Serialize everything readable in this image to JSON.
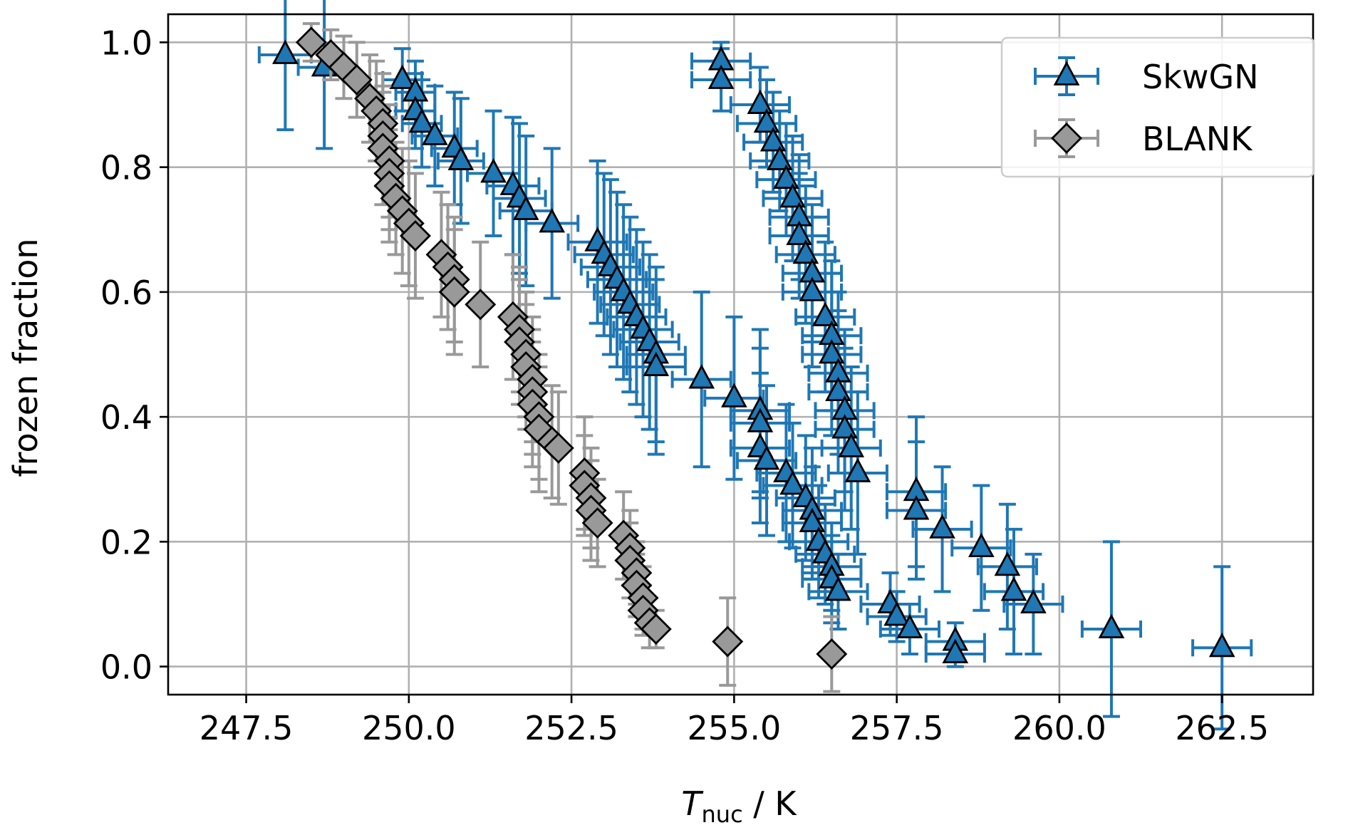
{
  "chart_data": {
    "type": "scatter",
    "xlabel": {
      "main": "T",
      "sub": "nuc",
      "rest": " / K"
    },
    "ylabel": "frozen fraction",
    "xlim": [
      246.3,
      263.9
    ],
    "ylim": [
      -0.045,
      1.045
    ],
    "xticks": [
      247.5,
      250.0,
      252.5,
      255.0,
      257.5,
      260.0,
      262.5
    ],
    "xtick_labels": [
      "247.5",
      "250.0",
      "252.5",
      "255.0",
      "257.5",
      "260.0",
      "262.5"
    ],
    "yticks": [
      0.0,
      0.2,
      0.4,
      0.6,
      0.8,
      1.0
    ],
    "ytick_labels": [
      "0.0",
      "0.2",
      "0.4",
      "0.6",
      "0.8",
      "1.0"
    ],
    "grid": true,
    "legend_position": "top-right",
    "series": [
      {
        "name": "SkwGN",
        "marker": "triangle",
        "color": "#1f77b4",
        "points": [
          [
            248.1,
            0.98,
            0.4,
            0.12
          ],
          [
            248.7,
            0.96,
            0.4,
            0.13
          ],
          [
            249.9,
            0.94,
            0.3,
            0.05
          ],
          [
            250.1,
            0.92,
            0.3,
            0.05
          ],
          [
            250.1,
            0.89,
            0.3,
            0.06
          ],
          [
            250.2,
            0.87,
            0.3,
            0.07
          ],
          [
            250.4,
            0.85,
            0.35,
            0.08
          ],
          [
            250.7,
            0.83,
            0.35,
            0.09
          ],
          [
            250.8,
            0.81,
            0.35,
            0.1
          ],
          [
            251.3,
            0.79,
            0.4,
            0.1
          ],
          [
            251.6,
            0.77,
            0.4,
            0.11
          ],
          [
            251.7,
            0.75,
            0.4,
            0.12
          ],
          [
            251.8,
            0.73,
            0.4,
            0.12
          ],
          [
            252.2,
            0.71,
            0.4,
            0.12
          ],
          [
            252.9,
            0.68,
            0.45,
            0.13
          ],
          [
            253.0,
            0.66,
            0.45,
            0.13
          ],
          [
            253.1,
            0.64,
            0.45,
            0.14
          ],
          [
            253.2,
            0.62,
            0.45,
            0.14
          ],
          [
            253.3,
            0.6,
            0.45,
            0.14
          ],
          [
            253.4,
            0.58,
            0.45,
            0.14
          ],
          [
            253.5,
            0.56,
            0.45,
            0.14
          ],
          [
            253.6,
            0.54,
            0.45,
            0.14
          ],
          [
            253.7,
            0.52,
            0.45,
            0.14
          ],
          [
            253.8,
            0.5,
            0.45,
            0.14
          ],
          [
            253.8,
            0.48,
            0.45,
            0.14
          ],
          [
            254.5,
            0.46,
            0.45,
            0.14
          ],
          [
            255.0,
            0.43,
            0.45,
            0.13
          ],
          [
            255.4,
            0.41,
            0.45,
            0.13
          ],
          [
            255.4,
            0.39,
            0.45,
            0.12
          ],
          [
            255.4,
            0.35,
            0.45,
            0.12
          ],
          [
            255.5,
            0.33,
            0.45,
            0.12
          ],
          [
            255.8,
            0.31,
            0.45,
            0.11
          ],
          [
            255.9,
            0.29,
            0.45,
            0.1
          ],
          [
            256.1,
            0.27,
            0.45,
            0.1
          ],
          [
            256.2,
            0.25,
            0.45,
            0.1
          ],
          [
            256.2,
            0.23,
            0.45,
            0.09
          ],
          [
            256.3,
            0.2,
            0.45,
            0.09
          ],
          [
            256.4,
            0.18,
            0.45,
            0.08
          ],
          [
            256.5,
            0.16,
            0.45,
            0.07
          ],
          [
            256.5,
            0.14,
            0.45,
            0.07
          ],
          [
            256.6,
            0.12,
            0.45,
            0.06
          ],
          [
            254.8,
            0.97,
            0.45,
            0.03
          ],
          [
            254.8,
            0.94,
            0.45,
            0.05
          ],
          [
            255.4,
            0.9,
            0.45,
            0.06
          ],
          [
            255.5,
            0.87,
            0.45,
            0.07
          ],
          [
            255.6,
            0.84,
            0.45,
            0.08
          ],
          [
            255.7,
            0.81,
            0.45,
            0.08
          ],
          [
            255.8,
            0.78,
            0.45,
            0.09
          ],
          [
            255.9,
            0.75,
            0.45,
            0.1
          ],
          [
            256.0,
            0.72,
            0.45,
            0.1
          ],
          [
            256.0,
            0.69,
            0.45,
            0.1
          ],
          [
            256.1,
            0.66,
            0.45,
            0.11
          ],
          [
            256.2,
            0.63,
            0.45,
            0.11
          ],
          [
            256.2,
            0.6,
            0.45,
            0.12
          ],
          [
            256.4,
            0.56,
            0.45,
            0.12
          ],
          [
            256.5,
            0.53,
            0.45,
            0.12
          ],
          [
            256.5,
            0.5,
            0.45,
            0.13
          ],
          [
            256.6,
            0.47,
            0.45,
            0.13
          ],
          [
            256.6,
            0.44,
            0.45,
            0.13
          ],
          [
            256.7,
            0.41,
            0.45,
            0.13
          ],
          [
            256.7,
            0.38,
            0.45,
            0.13
          ],
          [
            256.8,
            0.35,
            0.45,
            0.13
          ],
          [
            256.9,
            0.31,
            0.45,
            0.13
          ],
          [
            257.8,
            0.28,
            0.45,
            0.12
          ],
          [
            257.8,
            0.25,
            0.45,
            0.11
          ],
          [
            258.2,
            0.22,
            0.45,
            0.1
          ],
          [
            258.8,
            0.19,
            0.45,
            0.1
          ],
          [
            259.2,
            0.16,
            0.45,
            0.1
          ],
          [
            259.3,
            0.12,
            0.45,
            0.1
          ],
          [
            259.6,
            0.1,
            0.45,
            0.08
          ],
          [
            257.4,
            0.1,
            0.45,
            0.05
          ],
          [
            257.5,
            0.08,
            0.45,
            0.04
          ],
          [
            257.7,
            0.06,
            0.45,
            0.04
          ],
          [
            258.4,
            0.04,
            0.45,
            0.03
          ],
          [
            258.4,
            0.02,
            0.45,
            0.02
          ],
          [
            260.8,
            0.06,
            0.45,
            0.14
          ],
          [
            262.5,
            0.03,
            0.45,
            0.13
          ]
        ]
      },
      {
        "name": "BLANK",
        "marker": "diamond",
        "color": "#999999",
        "points": [
          [
            248.5,
            1.0,
            0.0,
            0.03
          ],
          [
            248.8,
            0.98,
            0.0,
            0.04
          ],
          [
            249.0,
            0.96,
            0.0,
            0.05
          ],
          [
            249.2,
            0.94,
            0.0,
            0.06
          ],
          [
            249.4,
            0.91,
            0.0,
            0.07
          ],
          [
            249.5,
            0.89,
            0.0,
            0.08
          ],
          [
            249.6,
            0.87,
            0.0,
            0.08
          ],
          [
            249.6,
            0.85,
            0.0,
            0.08
          ],
          [
            249.6,
            0.83,
            0.0,
            0.09
          ],
          [
            249.7,
            0.81,
            0.0,
            0.09
          ],
          [
            249.7,
            0.79,
            0.0,
            0.09
          ],
          [
            249.7,
            0.77,
            0.0,
            0.09
          ],
          [
            249.8,
            0.75,
            0.0,
            0.09
          ],
          [
            249.9,
            0.73,
            0.0,
            0.1
          ],
          [
            250.0,
            0.71,
            0.0,
            0.1
          ],
          [
            250.1,
            0.69,
            0.0,
            0.1
          ],
          [
            250.5,
            0.66,
            0.0,
            0.1
          ],
          [
            250.6,
            0.64,
            0.0,
            0.1
          ],
          [
            250.7,
            0.62,
            0.0,
            0.1
          ],
          [
            250.7,
            0.6,
            0.0,
            0.1
          ],
          [
            251.1,
            0.58,
            0.0,
            0.1
          ],
          [
            251.6,
            0.56,
            0.0,
            0.1
          ],
          [
            251.7,
            0.54,
            0.0,
            0.1
          ],
          [
            251.7,
            0.52,
            0.0,
            0.1
          ],
          [
            251.8,
            0.5,
            0.0,
            0.1
          ],
          [
            251.8,
            0.48,
            0.0,
            0.1
          ],
          [
            251.9,
            0.46,
            0.0,
            0.1
          ],
          [
            251.9,
            0.44,
            0.0,
            0.1
          ],
          [
            251.9,
            0.42,
            0.0,
            0.1
          ],
          [
            252.0,
            0.4,
            0.0,
            0.1
          ],
          [
            252.0,
            0.38,
            0.0,
            0.1
          ],
          [
            252.2,
            0.36,
            0.0,
            0.09
          ],
          [
            252.3,
            0.35,
            0.0,
            0.09
          ],
          [
            252.7,
            0.31,
            0.0,
            0.09
          ],
          [
            252.7,
            0.29,
            0.0,
            0.08
          ],
          [
            252.8,
            0.27,
            0.0,
            0.08
          ],
          [
            252.8,
            0.25,
            0.0,
            0.08
          ],
          [
            252.9,
            0.23,
            0.0,
            0.07
          ],
          [
            253.3,
            0.21,
            0.0,
            0.07
          ],
          [
            253.4,
            0.19,
            0.0,
            0.06
          ],
          [
            253.4,
            0.17,
            0.0,
            0.06
          ],
          [
            253.5,
            0.15,
            0.0,
            0.05
          ],
          [
            253.5,
            0.13,
            0.0,
            0.05
          ],
          [
            253.6,
            0.11,
            0.0,
            0.05
          ],
          [
            253.6,
            0.09,
            0.0,
            0.04
          ],
          [
            253.7,
            0.07,
            0.0,
            0.04
          ],
          [
            253.8,
            0.06,
            0.0,
            0.03
          ],
          [
            254.9,
            0.04,
            0.0,
            0.07
          ],
          [
            256.5,
            0.02,
            0.0,
            0.06
          ]
        ]
      }
    ]
  }
}
